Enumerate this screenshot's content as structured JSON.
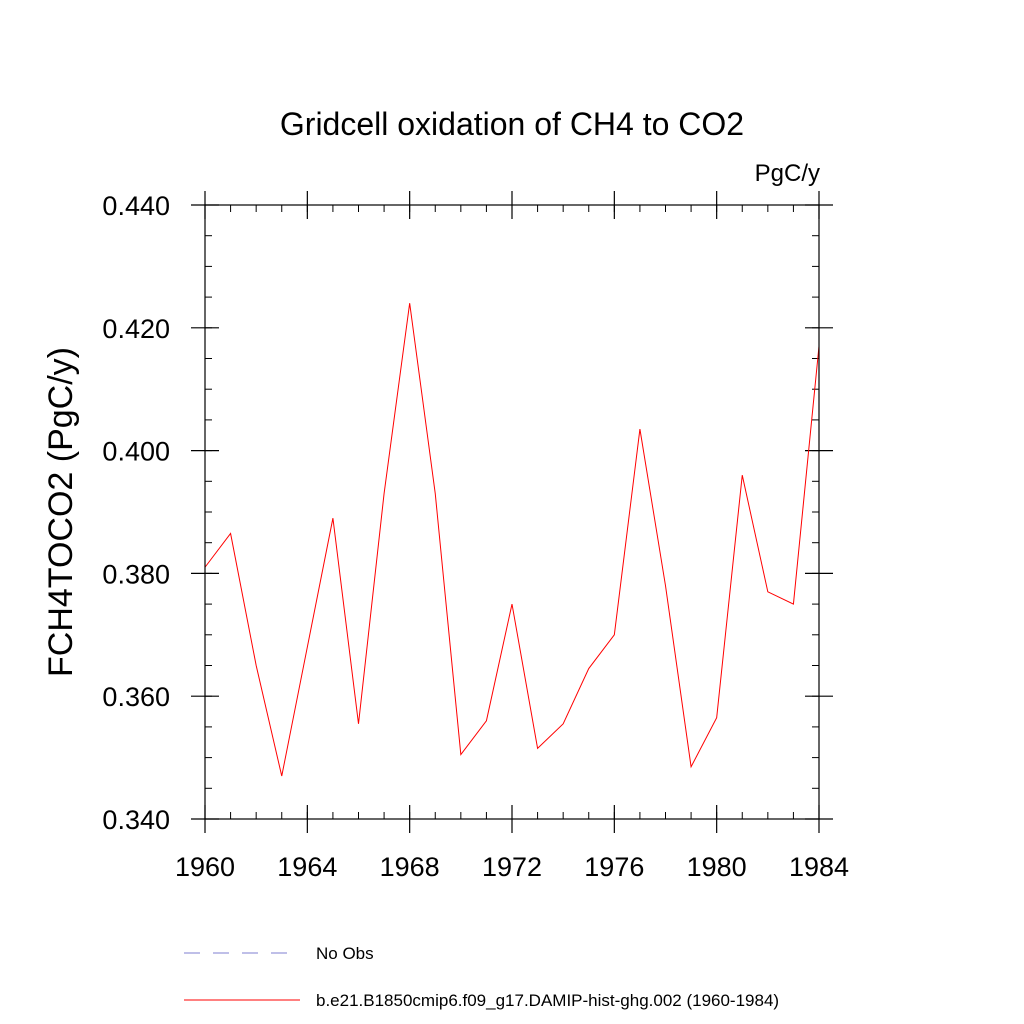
{
  "chart_data": {
    "type": "line",
    "title": "Gridcell oxidation of CH4 to CO2",
    "units": "PgC/y",
    "ylabel": "FCH4TOCO2  (PgC/y)",
    "xlabel": "",
    "xlim": [
      1960,
      1984
    ],
    "ylim": [
      0.34,
      0.44
    ],
    "x_ticks": [
      1960,
      1964,
      1968,
      1972,
      1976,
      1980,
      1984
    ],
    "x_tick_labels": [
      "1960",
      "1964",
      "1968",
      "1972",
      "1976",
      "1980",
      "1984"
    ],
    "y_ticks": [
      0.34,
      0.36,
      0.38,
      0.4,
      0.42,
      0.44
    ],
    "y_tick_labels": [
      "0.340",
      "0.360",
      "0.380",
      "0.400",
      "0.420",
      "0.440"
    ],
    "grid": false,
    "legend_position": "bottom",
    "legend": [
      {
        "label": "No Obs",
        "color": "#7f7fd0",
        "style": "dashed"
      },
      {
        "label": "b.e21.B1850cmip6.f09_g17.DAMIP-hist-ghg.002 (1960-1984)",
        "color": "#ff0000",
        "style": "solid"
      }
    ],
    "series": [
      {
        "name": "b.e21.B1850cmip6.f09_g17.DAMIP-hist-ghg.002 (1960-1984)",
        "color": "#ff0000",
        "x": [
          1960,
          1961,
          1962,
          1963,
          1964,
          1965,
          1966,
          1967,
          1968,
          1969,
          1970,
          1971,
          1972,
          1973,
          1974,
          1975,
          1976,
          1977,
          1978,
          1979,
          1980,
          1981,
          1982,
          1983,
          1984
        ],
        "values": [
          0.381,
          0.3865,
          0.365,
          0.347,
          0.368,
          0.389,
          0.3555,
          0.393,
          0.424,
          0.393,
          0.3505,
          0.356,
          0.375,
          0.3515,
          0.3555,
          0.3645,
          0.37,
          0.4035,
          0.378,
          0.3485,
          0.3565,
          0.396,
          0.377,
          0.375,
          0.417
        ]
      }
    ]
  }
}
